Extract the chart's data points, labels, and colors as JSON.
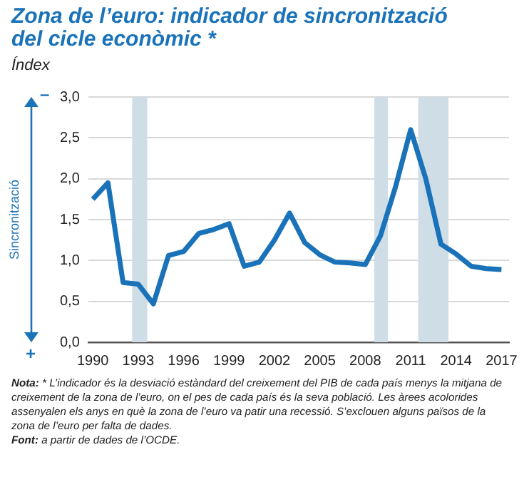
{
  "chart_data": {
    "type": "line",
    "title": "Zona de l’euro: indicador de sincronització del cicle econòmic *",
    "subtitle": "Índex",
    "ylabel": "Sincronització",
    "annotations": [
      "–",
      "+",
      "Nota: * L’indicador és la desviació estàndard del creixement del PIB de cada país menys la mitjana de creixement de la zona de l’euro, on el pes de cada país és la seva població. Les àrees acolorides assenyalen els anys en què la zona de l’euro va patir una recessió. S’exclouen alguns països de la zona de l’euro per falta de dades.",
      "Font: a partir de dades de l’OCDE."
    ],
    "x": [
      1990,
      1991,
      1992,
      1993,
      1994,
      1995,
      1996,
      1997,
      1998,
      1999,
      2000,
      2001,
      2002,
      2003,
      2004,
      2005,
      2006,
      2007,
      2008,
      2009,
      2010,
      2011,
      2012,
      2013,
      2014,
      2015,
      2016,
      2017
    ],
    "series": [
      {
        "color": "#1a72b9",
        "values": [
          1.75,
          1.95,
          0.73,
          0.71,
          0.47,
          1.06,
          1.11,
          1.33,
          1.38,
          1.45,
          0.93,
          0.98,
          1.25,
          1.58,
          1.22,
          1.07,
          0.98,
          0.97,
          0.95,
          1.3,
          1.9,
          2.6,
          2.0,
          1.2,
          1.08,
          0.93,
          0.9,
          0.89
        ]
      }
    ],
    "xlim": [
      1989.7,
      2017.5
    ],
    "xticks": [
      1990,
      1993,
      1996,
      1999,
      2002,
      2005,
      2008,
      2011,
      2014,
      2017
    ],
    "ylim": [
      0,
      3
    ],
    "yticks": [
      {
        "value": 0,
        "label": "0,0"
      },
      {
        "value": 0.5,
        "label": "0,5"
      },
      {
        "value": 1,
        "label": "1,0"
      },
      {
        "value": 1.5,
        "label": "1,5"
      },
      {
        "value": 2,
        "label": "2,0"
      },
      {
        "value": 2.5,
        "label": "2,5"
      },
      {
        "value": 3,
        "label": "3,0"
      }
    ],
    "bands": [
      {
        "axis": "x",
        "from": 1992.6,
        "to": 1993.6,
        "color": "#cfdde7"
      },
      {
        "axis": "x",
        "from": 2008.6,
        "to": 2009.5,
        "color": "#cfdde7"
      },
      {
        "axis": "x",
        "from": 2011.5,
        "to": 2013.5,
        "color": "#cfdde7"
      }
    ],
    "grid": "y",
    "legend": false,
    "marker": "none",
    "line_style": "solid"
  }
}
